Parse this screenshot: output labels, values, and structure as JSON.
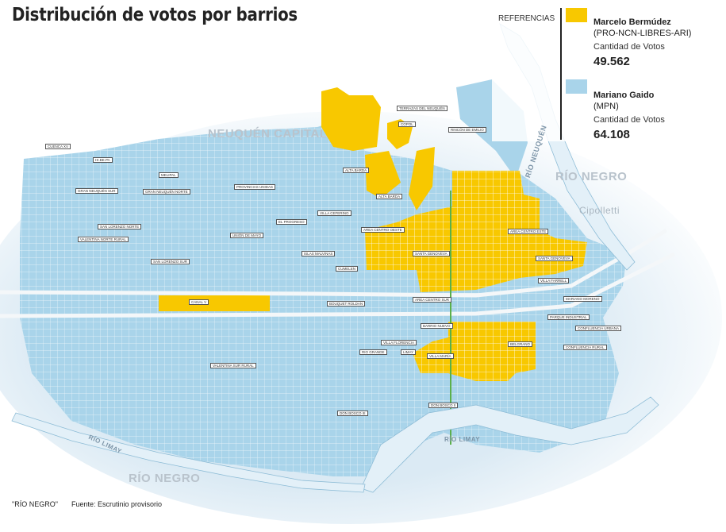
{
  "title": "Distribución de votos por barrios",
  "legend": {
    "heading": "REFERENCIAS",
    "items": [
      {
        "name": "Marcelo Bermúdez",
        "party": "(PRO-NCN-LIBRES-ARI)",
        "caption": "Cantidad de Votos",
        "votes": "49.562",
        "color": "#f8c800"
      },
      {
        "name": "Mariano Gaido",
        "party": "(MPN)",
        "caption": "Cantidad de Votos",
        "votes": "64.108",
        "color": "#a9d4ea"
      }
    ]
  },
  "map_labels": {
    "neuquen": "NEUQUÉN CAPITAL",
    "rio_negro_east": "RÍO NEGRO",
    "rio_negro_south": "RÍO NEGRO",
    "cipolletti": "Cipolletti",
    "rio_neuquen": "RÍO NEUQUÉN",
    "rio_limay_west": "RÍO LIMAY",
    "rio_limay_east": "RÍO LIMAY"
  },
  "barrios": [
    "ALTA BARDA",
    "ALTA BARDA",
    "AREA CENTRO OESTE",
    "AREA CENTRO ESTE",
    "SANTA GENOVEVA",
    "VILLA FARRELL",
    "AREA CENTRO SUR",
    "BOUQUET ROLDAN",
    "CANAL V",
    "MARIANO MORENO",
    "BARRIO NUEVO",
    "VILLA FLORENCIA",
    "BELGRANO",
    "VILLA MARÍA",
    "RIO GRANDE",
    "LIMAY",
    "DON BOSCO III",
    "DON BOSCO II",
    "CONFLUENCIA RURAL",
    "VALENTINA NORTE RURAL",
    "VALENTINA SUR RURAL",
    "GRAN NEUQUÉN SUR",
    "GRAN NEUQUÉN NORTE",
    "SAN LORENZO NORTE",
    "SAN LORENZO SUR",
    "CUENCA XV",
    "HI.BE.PA",
    "TERRAZAS DEL NEUQUÉN",
    "COPOL",
    "RINCÓN DE EMILIO",
    "MELIPAL",
    "PROVINCIAS UNIDAS",
    "UNIÓN DE MAYO",
    "EL PROGRESO",
    "VILLA CEFERINO",
    "ISLAS MALVINAS",
    "CUMELEN",
    "SANTA GENOVEVA",
    "PARQUE INDUSTRIAL",
    "CONFLUENCIA URBANA"
  ],
  "footer": {
    "credit": "\"RÍO NEGRO\"",
    "source": "Fuente: Escrutinio provisorio"
  }
}
